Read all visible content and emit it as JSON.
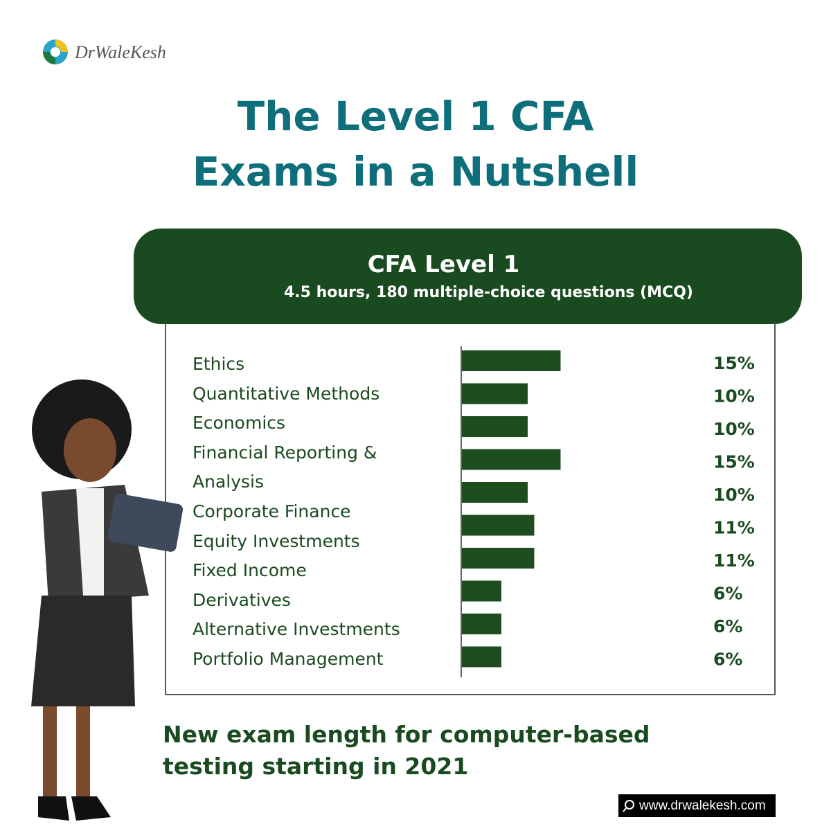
{
  "logo": "DrWaleKesh",
  "title_lines": [
    "The Level 1 CFA",
    "Exams in a Nutshell"
  ],
  "chart_data": {
    "type": "bar",
    "title": "CFA Level 1",
    "subtitle": "4.5 hours, 180 multiple-choice questions (MCQ)",
    "categories": [
      "Ethics",
      "Quantitative Methods",
      "Economics",
      "Financial Reporting & Analysis",
      "Corporate Finance",
      "Equity Investments",
      "Fixed Income",
      "Derivatives",
      "Alternative Investments",
      "Portfolio Management"
    ],
    "values": [
      15,
      10,
      10,
      15,
      10,
      11,
      11,
      6,
      6,
      6
    ],
    "value_labels": [
      "15%",
      "10%",
      "10%",
      "15%",
      "10%",
      "11%",
      "11%",
      "6%",
      "6%",
      "6%"
    ],
    "color": "#1c4d1f"
  },
  "footer_lines": [
    "New exam length for computer-based",
    "testing starting in 2021"
  ],
  "url": "www.drwalekesh.com"
}
